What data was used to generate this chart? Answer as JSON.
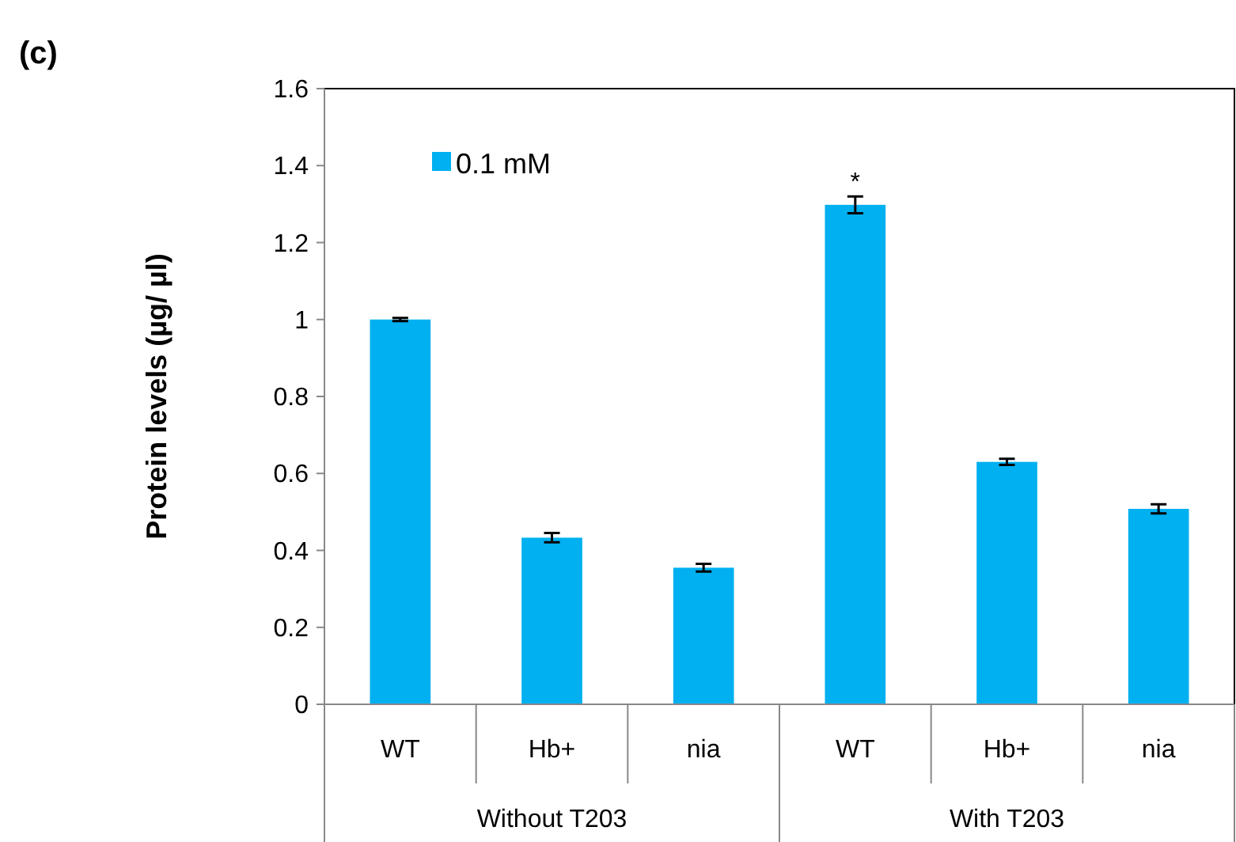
{
  "chart_data": {
    "type": "bar",
    "title": "(c)",
    "ylabel": "Protein levels (µg/ µl)",
    "categories": [
      "WT",
      "Hb+",
      "nia",
      "WT",
      "Hb+",
      "nia"
    ],
    "series": [
      {
        "name": "0.1 mM",
        "color": "#00b0f0",
        "values": [
          1.0,
          0.433,
          0.355,
          1.298,
          0.63,
          0.508
        ],
        "errors": [
          0.004,
          0.012,
          0.01,
          0.022,
          0.008,
          0.012
        ],
        "value_labels": [
          null,
          null,
          null,
          "*",
          null,
          null
        ]
      }
    ],
    "ylim": [
      0,
      1.6
    ],
    "yticks": [
      0,
      0.2,
      0.4,
      0.6,
      0.8,
      1,
      1.2,
      1.4,
      1.6
    ],
    "legend": "top left",
    "annotations": [
      "Without T203",
      "With T203"
    ]
  }
}
